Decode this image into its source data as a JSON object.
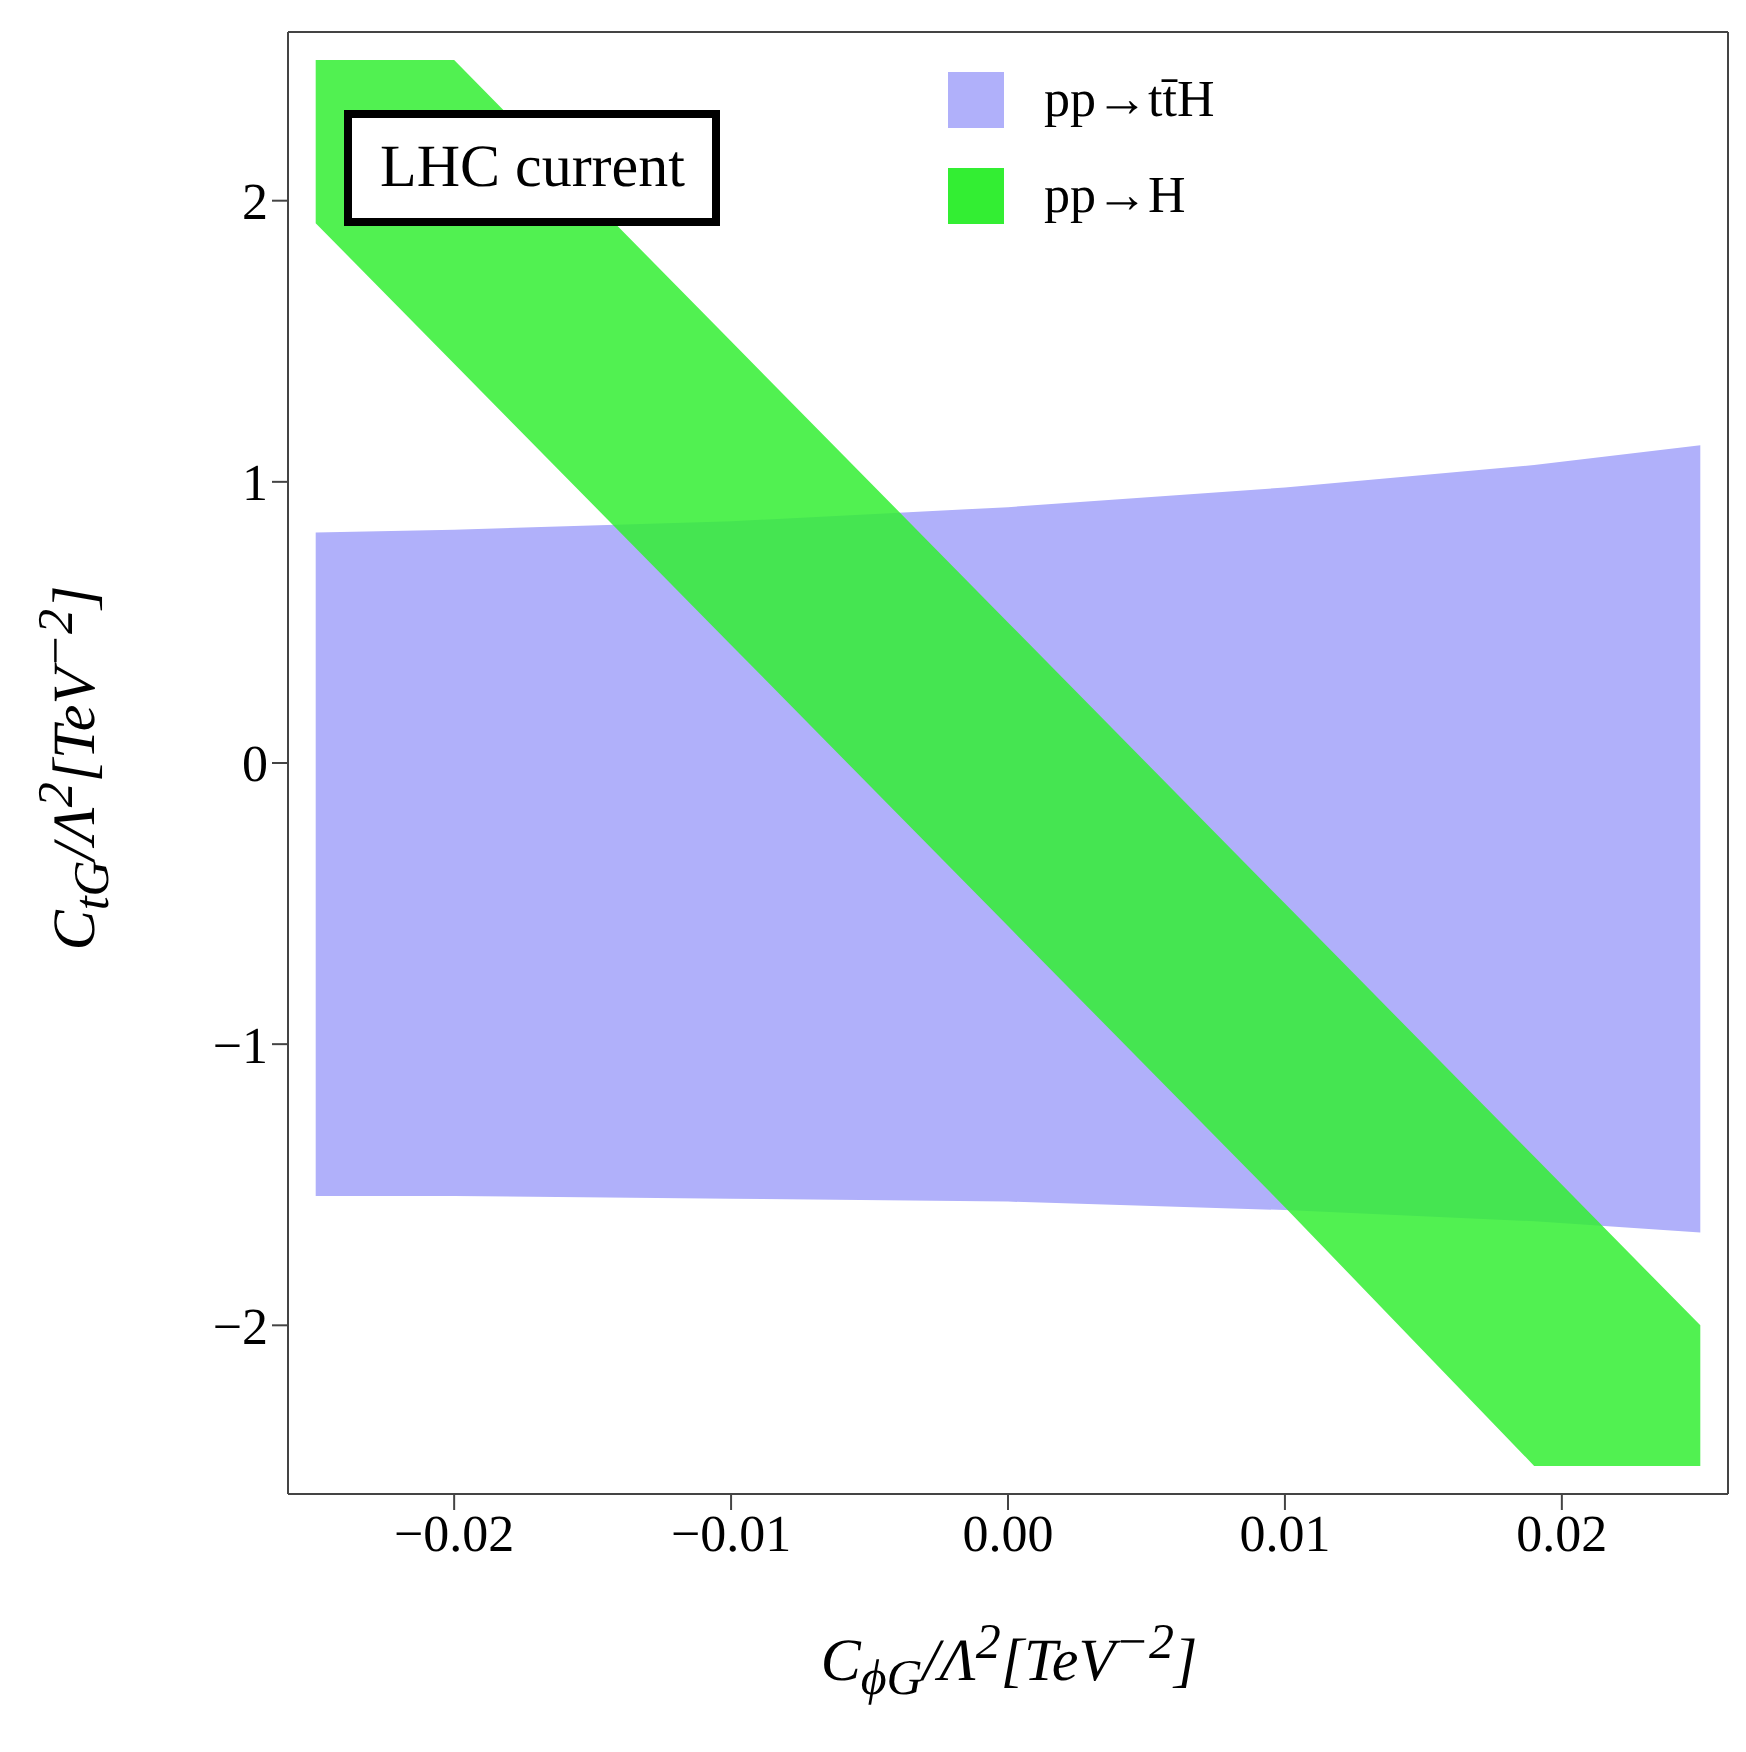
{
  "chart_data": {
    "type": "area",
    "xlabel": "C$_{ϕG}$/Λ$^{2}$[TeV$^{−2}$]",
    "ylabel": "C$_{tG}$/Λ$^{2}$[TeV$^{−2}$]",
    "annotations": [
      "LHC current"
    ],
    "x": [
      -0.025,
      -0.02,
      -0.01,
      0,
      0.01,
      0.019,
      0.025
    ],
    "series": [
      {
        "name": "pp→tt̄H",
        "color": "#b0b0fa",
        "values": [
          null,
          null,
          null,
          null,
          null,
          null,
          null
        ],
        "lower": [
          -1.54,
          -1.54,
          -1.55,
          -1.56,
          -1.59,
          -1.63,
          -1.67
        ],
        "upper": [
          0.82,
          0.83,
          0.86,
          0.91,
          0.98,
          1.06,
          1.13
        ]
      },
      {
        "name": "pp→H",
        "color": "#33ee33",
        "values": [
          null,
          null,
          null,
          null,
          null,
          null,
          null
        ],
        "lower": [
          1.92,
          1.42,
          0.42,
          -0.58,
          -1.58,
          -2.5,
          -2.5
        ],
        "upper": [
          2.5,
          2.5,
          1.5,
          0.5,
          -0.5,
          -1.4,
          -2.0
        ]
      }
    ],
    "xlim": [
      -0.026,
      0.026
    ],
    "xticks": [
      {
        "value": -0.02,
        "label": "−0.02"
      },
      {
        "value": -0.01,
        "label": "−0.01"
      },
      {
        "value": 0,
        "label": "0.00"
      },
      0.01,
      0.02
    ],
    "ylim": [
      -2.6,
      2.6
    ],
    "yticks": [
      {
        "value": -2,
        "label": "−2"
      },
      {
        "value": -1,
        "label": "−1"
      },
      0,
      1,
      2
    ],
    "legend": "top right",
    "grid": false
  }
}
